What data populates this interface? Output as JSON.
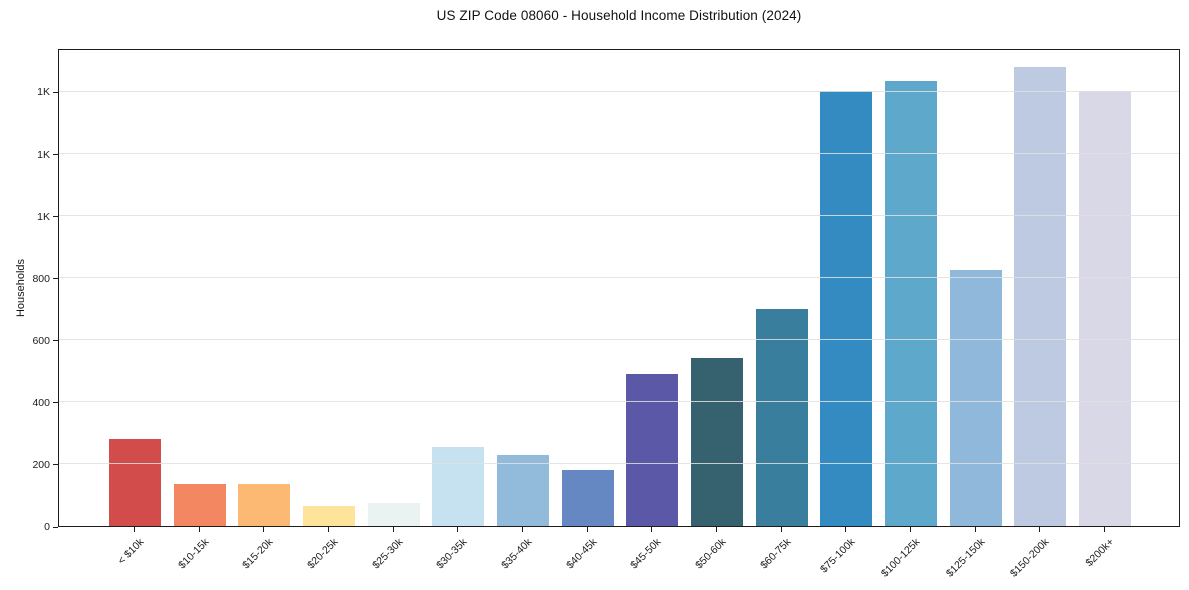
{
  "chart_data": {
    "type": "bar",
    "title": "US ZIP Code 08060 - Household Income Distribution (2024)",
    "xlabel": "",
    "ylabel": "Households",
    "categories": [
      "< $10k",
      "$10-15k",
      "$15-20k",
      "$20-25k",
      "$25-30k",
      "$30-35k",
      "$35-40k",
      "$40-45k",
      "$45-50k",
      "$50-60k",
      "$60-75k",
      "$75-100k",
      "$100-125k",
      "$125-150k",
      "$150-200k",
      "$200k+"
    ],
    "values": [
      280,
      135,
      135,
      65,
      75,
      255,
      230,
      180,
      490,
      540,
      700,
      1400,
      1435,
      825,
      1480,
      1400
    ],
    "bar_colors": [
      "#d14c4b",
      "#f38761",
      "#fcb974",
      "#fde49a",
      "#eaf3f1",
      "#c6e1ef",
      "#92badb",
      "#6587c2",
      "#5b58a7",
      "#366270",
      "#3a7e9e",
      "#348bc1",
      "#5ea8cc",
      "#8fb8da",
      "#bdcae2",
      "#d8d8e7"
    ],
    "ytick_values": [
      0,
      200,
      400,
      600,
      800,
      1000,
      1200,
      1400
    ],
    "ytick_labels": [
      "0",
      "200",
      "400",
      "600",
      "800",
      "1K",
      "1K",
      "1K"
    ],
    "ylim": [
      0,
      1540
    ],
    "grid": "horizontal",
    "legend": "none",
    "axis_color": "#1c1c1c",
    "grid_color": "#e1e1e1",
    "background_color": "#ffffff"
  }
}
